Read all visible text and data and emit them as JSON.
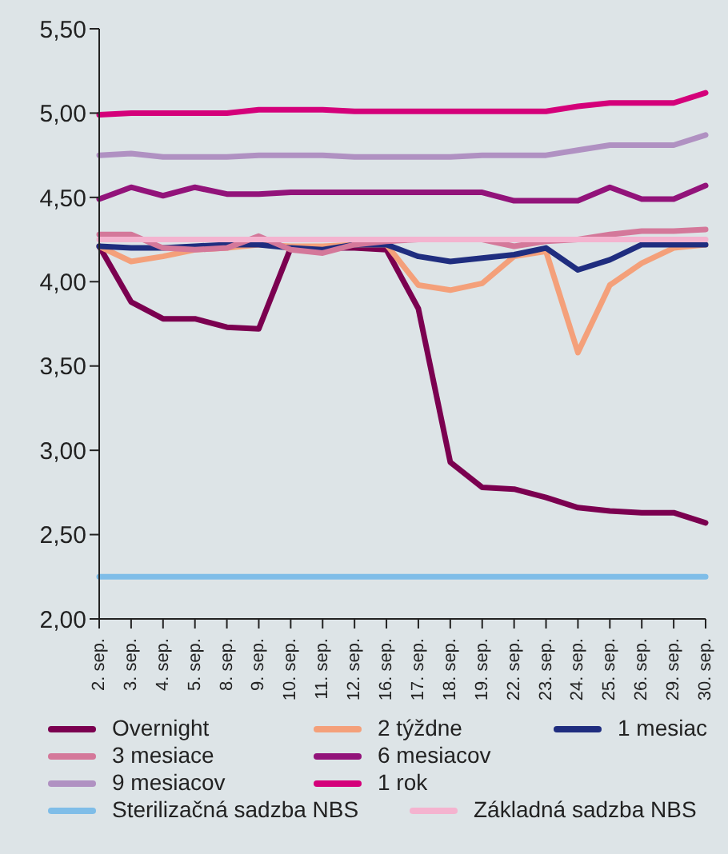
{
  "chart_data": {
    "type": "line",
    "categories": [
      "2. sep.",
      "3. sep.",
      "4. sep.",
      "5. sep.",
      "8. sep.",
      "9. sep.",
      "10. sep.",
      "11. sep.",
      "12. sep.",
      "16. sep.",
      "17. sep.",
      "18. sep.",
      "19. sep.",
      "22. sep.",
      "23. sep.",
      "24. sep.",
      "25. sep.",
      "26. sep.",
      "29. sep.",
      "30. sep."
    ],
    "ylim": [
      2,
      5.5
    ],
    "yticks": [
      {
        "value": 2,
        "label": "2,00"
      },
      {
        "value": 2.5,
        "label": "2,50"
      },
      {
        "value": 3,
        "label": "3,00"
      },
      {
        "value": 3.5,
        "label": "3,50"
      },
      {
        "value": 4,
        "label": "4,00"
      },
      {
        "value": 4.5,
        "label": "4,50"
      },
      {
        "value": 5,
        "label": "5,00"
      },
      {
        "value": 5.5,
        "label": "5,50"
      }
    ],
    "grid": false,
    "legend": "bottom",
    "marker": "none",
    "line_style": "solid",
    "series": [
      {
        "name": "Overnight",
        "color": "#7b0050",
        "values": [
          4.21,
          3.88,
          3.78,
          3.78,
          3.73,
          3.72,
          4.2,
          4.2,
          4.2,
          4.19,
          3.84,
          2.93,
          2.78,
          2.77,
          2.72,
          2.66,
          2.64,
          2.63,
          2.63,
          2.57
        ]
      },
      {
        "name": "2 týždne",
        "color": "#f4a07a",
        "values": [
          4.21,
          4.12,
          4.15,
          4.19,
          4.2,
          4.22,
          4.21,
          4.21,
          4.22,
          4.22,
          3.98,
          3.95,
          3.99,
          4.15,
          4.18,
          3.58,
          3.98,
          4.11,
          4.2,
          4.22
        ]
      },
      {
        "name": "1 mesiac",
        "color": "#1f2d7f",
        "values": [
          4.21,
          4.2,
          4.2,
          4.21,
          4.22,
          4.22,
          4.2,
          4.19,
          4.22,
          4.22,
          4.15,
          4.12,
          4.14,
          4.16,
          4.2,
          4.07,
          4.13,
          4.22,
          4.22,
          4.22
        ]
      },
      {
        "name": "3 mesiace",
        "color": "#d4789a",
        "values": [
          4.28,
          4.28,
          4.2,
          4.19,
          4.2,
          4.27,
          4.19,
          4.17,
          4.22,
          4.24,
          4.25,
          4.25,
          4.25,
          4.21,
          4.24,
          4.25,
          4.28,
          4.3,
          4.3,
          4.31
        ]
      },
      {
        "name": "6 mesiacov",
        "color": "#92137a",
        "values": [
          4.49,
          4.56,
          4.51,
          4.56,
          4.52,
          4.52,
          4.53,
          4.53,
          4.53,
          4.53,
          4.53,
          4.53,
          4.53,
          4.48,
          4.48,
          4.48,
          4.56,
          4.49,
          4.49,
          4.57
        ]
      },
      {
        "name": "9 mesiacov",
        "color": "#b091c2",
        "values": [
          4.75,
          4.76,
          4.74,
          4.74,
          4.74,
          4.75,
          4.75,
          4.75,
          4.74,
          4.74,
          4.74,
          4.74,
          4.75,
          4.75,
          4.75,
          4.78,
          4.81,
          4.81,
          4.81,
          4.87
        ]
      },
      {
        "name": "1 rok",
        "color": "#d4007a",
        "values": [
          4.99,
          5,
          5,
          5,
          5,
          5.02,
          5.02,
          5.02,
          5.01,
          5.01,
          5.01,
          5.01,
          5.01,
          5.01,
          5.01,
          5.04,
          5.06,
          5.06,
          5.06,
          5.12
        ]
      },
      {
        "name": "Sterilizačná sadzba NBS",
        "color": "#7fbde8",
        "values": [
          2.25,
          2.25,
          2.25,
          2.25,
          2.25,
          2.25,
          2.25,
          2.25,
          2.25,
          2.25,
          2.25,
          2.25,
          2.25,
          2.25,
          2.25,
          2.25,
          2.25,
          2.25,
          2.25,
          2.25
        ]
      },
      {
        "name": "Základná sadzba NBS",
        "color": "#f4b3cf",
        "values": [
          4.25,
          4.25,
          4.25,
          4.25,
          4.25,
          4.25,
          4.25,
          4.25,
          4.25,
          4.25,
          4.25,
          4.25,
          4.25,
          4.25,
          4.25,
          4.25,
          4.25,
          4.25,
          4.25,
          4.25
        ]
      }
    ]
  }
}
